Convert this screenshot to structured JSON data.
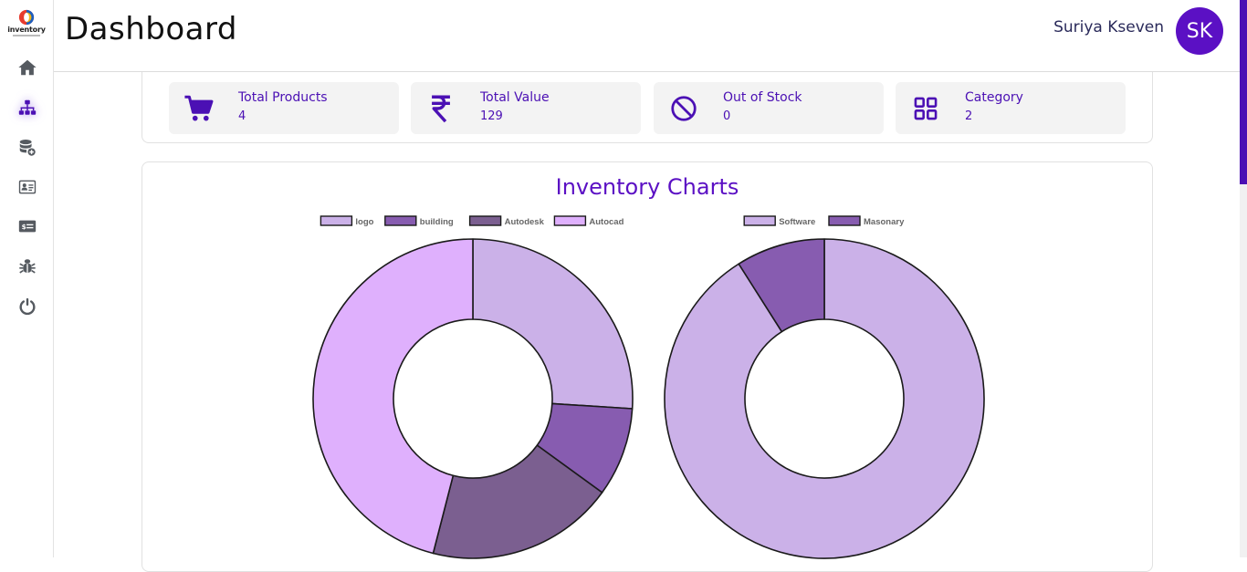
{
  "app": {
    "logo_text": "inventory",
    "page_title": "Dashboard"
  },
  "sidebar": {
    "items": [
      {
        "icon": "home-icon",
        "active": false
      },
      {
        "icon": "sitemap-icon",
        "active": true
      },
      {
        "icon": "database-add-icon",
        "active": false
      },
      {
        "icon": "id-card-icon",
        "active": false
      },
      {
        "icon": "money-card-icon",
        "active": false
      },
      {
        "icon": "bug-icon",
        "active": false
      },
      {
        "icon": "power-icon",
        "active": false
      }
    ]
  },
  "user": {
    "name": "Suriya Kseven",
    "initials": "SK"
  },
  "stats": [
    {
      "label": "Total Products",
      "value": "4",
      "icon": "cart-icon"
    },
    {
      "label": "Total Value",
      "value": "129",
      "icon": "rupee-icon"
    },
    {
      "label": "Out of Stock",
      "value": "0",
      "icon": "ban-icon"
    },
    {
      "label": "Category",
      "value": "2",
      "icon": "grid-icon"
    }
  ],
  "charts_section": {
    "title": "Inventory Charts"
  },
  "colors": {
    "accent": "#5b10c4",
    "dark_accent": "#4b10b4"
  },
  "chart_data": [
    {
      "type": "pie",
      "donut": true,
      "legend_position": "top",
      "categories": [
        "logo",
        "building",
        "Autodesk",
        "Autocad"
      ],
      "values": [
        26,
        9,
        19,
        46
      ],
      "colors": [
        "#cbb1e8",
        "#875cb0",
        "#7b5f90",
        "#dfb0fd"
      ]
    },
    {
      "type": "pie",
      "donut": true,
      "legend_position": "top",
      "categories": [
        "Software",
        "Masonary"
      ],
      "values": [
        91,
        9
      ],
      "colors": [
        "#cbb1e8",
        "#875cb0"
      ]
    }
  ]
}
